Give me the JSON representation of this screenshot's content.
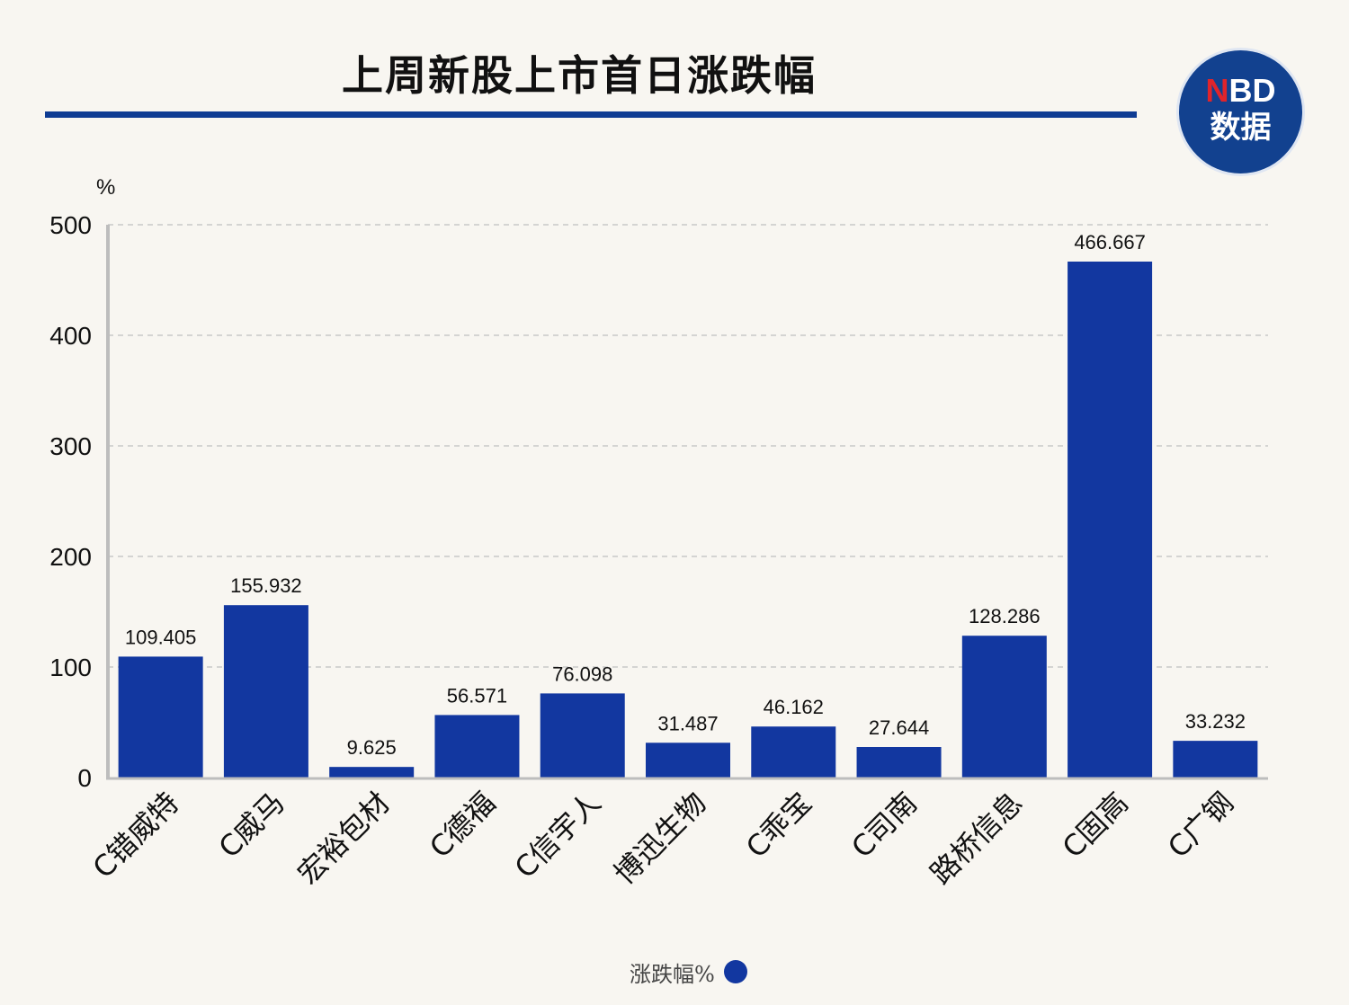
{
  "title": "上周新股上市首日涨跌幅",
  "logo": {
    "line1_red": "N",
    "line1_rest": "BD",
    "line2": "数据"
  },
  "colors": {
    "bar": "#1237a0",
    "title_rule": "#0f3c93",
    "grid": "#c8c8c8",
    "axis": "#bdbdbd"
  },
  "chart_data": {
    "type": "bar",
    "title": "上周新股上市首日涨跌幅",
    "ylabel": "%",
    "ylim": [
      0,
      500
    ],
    "yticks": [
      0,
      100,
      200,
      300,
      400,
      500
    ],
    "grid": true,
    "legend_position": "bottom-center",
    "categories": [
      "C错威特",
      "C威马",
      "宏裕包材",
      "C德福",
      "C信宇人",
      "博迅生物",
      "C乖宝",
      "C司南",
      "路桥信息",
      "C固高",
      "C广钢"
    ],
    "series": [
      {
        "name": "涨跌幅%",
        "values": [
          109.405,
          155.932,
          9.625,
          56.571,
          76.098,
          31.487,
          46.162,
          27.644,
          128.286,
          466.667,
          33.232
        ],
        "labels": [
          "109.405",
          "155.932",
          "9.625",
          "56.571",
          "76.098",
          "31.487",
          "46.162",
          "27.644",
          "128.286",
          "466.667",
          "33.232"
        ]
      }
    ]
  }
}
